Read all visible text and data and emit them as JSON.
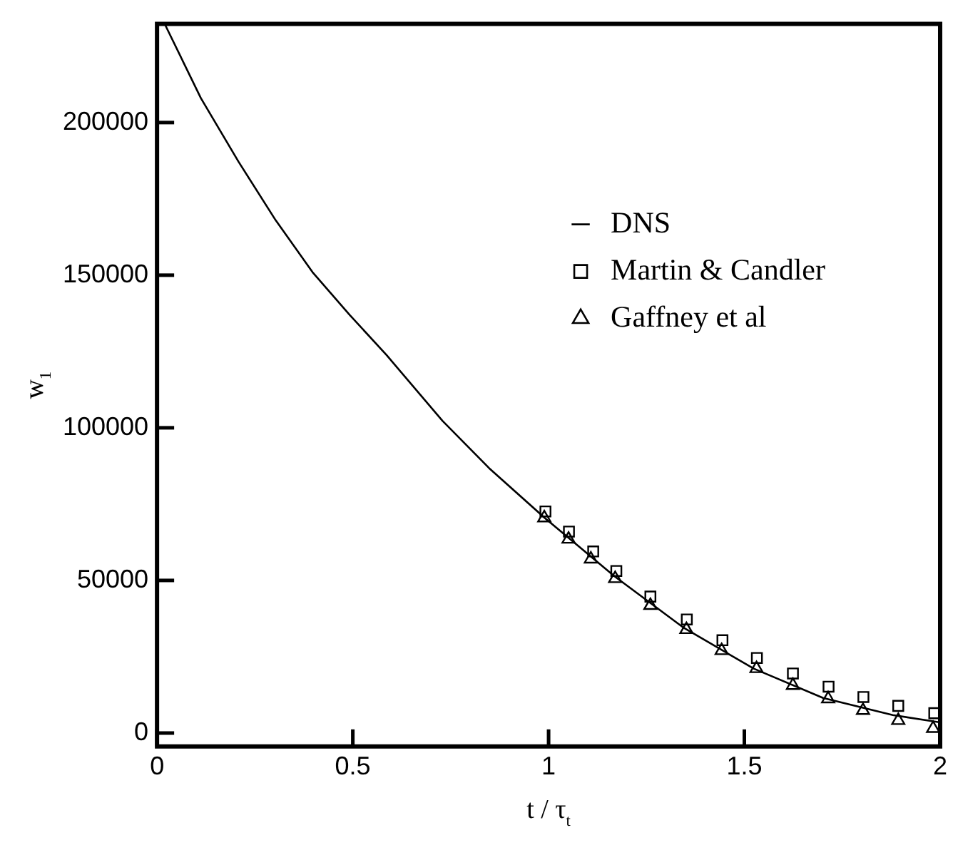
{
  "chart_data": {
    "type": "line",
    "xlabel": "t / τ$_{t}$",
    "ylabel": "w$_{1}$",
    "xlim": [
      0,
      2
    ],
    "xticks": [
      0,
      0.5,
      1,
      1.5,
      2
    ],
    "ylim": [
      -4400,
      232300
    ],
    "yticks": [
      0,
      50000,
      100000,
      150000,
      200000
    ],
    "grid": false,
    "legend": "top right",
    "series": [
      {
        "name": "DNS",
        "color": "#000000",
        "marker": "none",
        "line_style": "solid",
        "x": [
          0.02,
          0.112,
          0.208,
          0.303,
          0.397,
          0.492,
          0.587,
          0.729,
          0.848,
          0.99,
          1.168,
          1.346,
          1.524,
          1.701,
          1.879,
          2
        ],
        "values": [
          232200,
          208000,
          187200,
          168000,
          151000,
          137000,
          123700,
          102300,
          86800,
          70500,
          51400,
          34400,
          21100,
          11500,
          5900,
          3500
        ]
      },
      {
        "name": "Martin & Candler",
        "type": "scatter",
        "color": "#000000",
        "marker": "square",
        "x": [
          0.992,
          1.052,
          1.114,
          1.173,
          1.26,
          1.353,
          1.444,
          1.532,
          1.624,
          1.715,
          1.804,
          1.893,
          1.985
        ],
        "values": [
          72600,
          66000,
          59500,
          53100,
          44700,
          37200,
          30400,
          24600,
          19500,
          15200,
          11800,
          8900,
          6500
        ]
      },
      {
        "name": "Gaffney et al",
        "type": "scatter",
        "color": "#000000",
        "marker": "triangle",
        "x": [
          0.989,
          1.051,
          1.108,
          1.17,
          1.26,
          1.352,
          1.442,
          1.531,
          1.624,
          1.714,
          1.803,
          1.893,
          1.982
        ],
        "values": [
          70500,
          63500,
          57000,
          50600,
          41800,
          33900,
          27000,
          21100,
          15600,
          11200,
          7400,
          4100,
          1500
        ]
      }
    ]
  }
}
